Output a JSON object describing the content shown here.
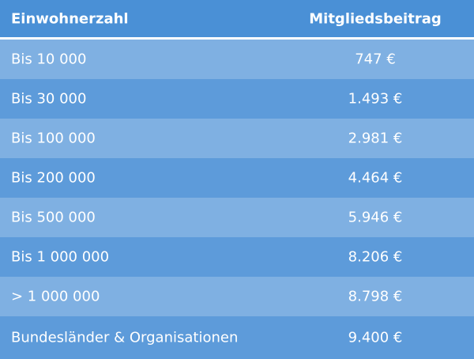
{
  "table": {
    "headers": {
      "col1": "Einwohnerzahl",
      "col2": "Mitgliedsbeitrag"
    },
    "rows": [
      {
        "population": "Bis 10 000",
        "fee": "747 €"
      },
      {
        "population": "Bis 30 000",
        "fee": "1.493 €"
      },
      {
        "population": "Bis 100 000",
        "fee": "2.981 €"
      },
      {
        "population": "Bis 200 000",
        "fee": "4.464 €"
      },
      {
        "population": "Bis 500 000",
        "fee": "5.946 €"
      },
      {
        "population": "Bis 1 000 000",
        "fee": "8.206 €"
      },
      {
        "population": "> 1 000 000",
        "fee": "8.798 €"
      },
      {
        "population": "Bundesländer & Organisationen",
        "fee": "9.400 €"
      }
    ]
  },
  "colors": {
    "header": "#4a90d6",
    "row_light": "#7fb0e2",
    "row_dark": "#5d9bda",
    "text": "#ffffff"
  }
}
